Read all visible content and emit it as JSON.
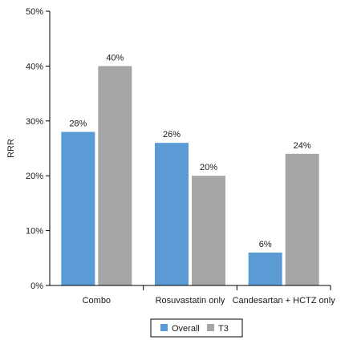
{
  "chart_data": {
    "type": "bar",
    "ylabel": "RRR",
    "ylim": [
      0,
      50
    ],
    "yticks": [
      0,
      10,
      20,
      30,
      40,
      50
    ],
    "ytick_labels": [
      "0%",
      "10%",
      "20%",
      "30%",
      "40%",
      "50%"
    ],
    "categories": [
      "Combo",
      "Rosuvastatin only",
      "Candesartan + HCTZ only"
    ],
    "series": [
      {
        "name": "Overall",
        "color": "#5b9bd5",
        "values": [
          28,
          26,
          6
        ],
        "labels": [
          "28%",
          "26%",
          "6%"
        ]
      },
      {
        "name": "T3",
        "color": "#a6a6a6",
        "values": [
          40,
          20,
          24
        ],
        "labels": [
          "40%",
          "20%",
          "24%"
        ]
      }
    ],
    "legend_position": "bottom-center",
    "grid": false
  }
}
